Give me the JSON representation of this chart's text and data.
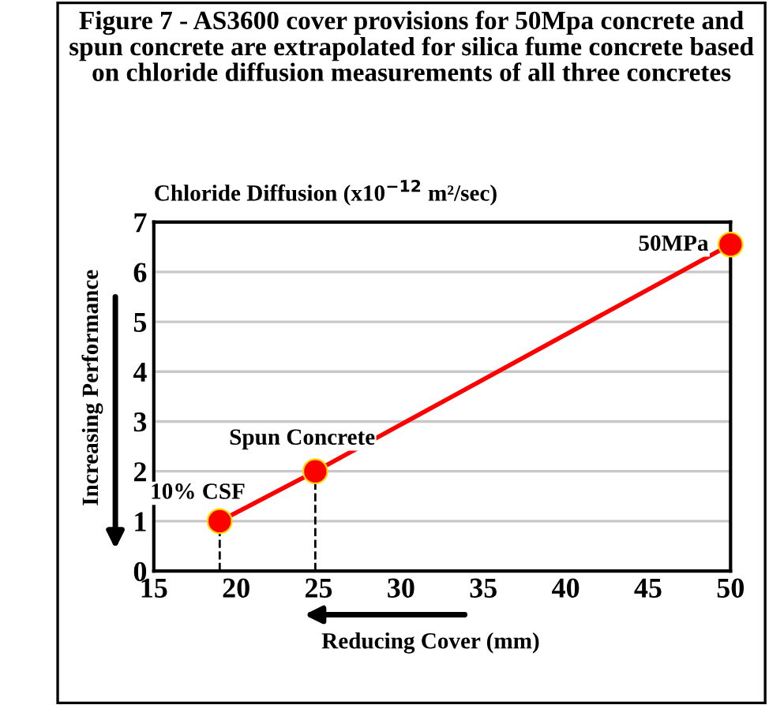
{
  "chart_data": {
    "type": "line",
    "title": "Figure 7 - AS3600 cover provisions for 50Mpa concrete and spun concrete are extrapolated for silica fume concrete based on chloride diffusion measurements of all three concretes",
    "ylabel": "Chloride Diffusion (x10$^{−12}$ m²/sec)",
    "xlabel": "Reducing Cover (mm)",
    "annotations": [
      "Increasing Performance",
      {
        "text": "10% CSF",
        "x": 19,
        "y": 1.0
      },
      {
        "text": "Spun Concrete",
        "x": 24.8,
        "y": 2.0
      },
      {
        "text": "50MPa",
        "x": 50,
        "y": 6.55
      }
    ],
    "x": [
      19,
      24.8,
      50
    ],
    "series": [
      {
        "color": "#ff0000",
        "values": [
          1.0,
          2.0,
          6.55
        ]
      }
    ],
    "marker": "circle",
    "line_style": "solid",
    "xlim": [
      15,
      50
    ],
    "xticks": [
      15,
      20,
      25,
      30,
      35,
      40,
      45,
      50
    ],
    "ylim": [
      0,
      7
    ],
    "yticks": [
      0,
      1,
      2,
      3,
      4,
      5,
      6,
      7
    ],
    "grid": "y",
    "ref_lines": [
      {
        "axis": "x",
        "value": 19,
        "line_style": "dashed",
        "color": "#000000"
      },
      {
        "axis": "x",
        "value": 24.8,
        "line_style": "dashed",
        "color": "#000000"
      }
    ]
  }
}
